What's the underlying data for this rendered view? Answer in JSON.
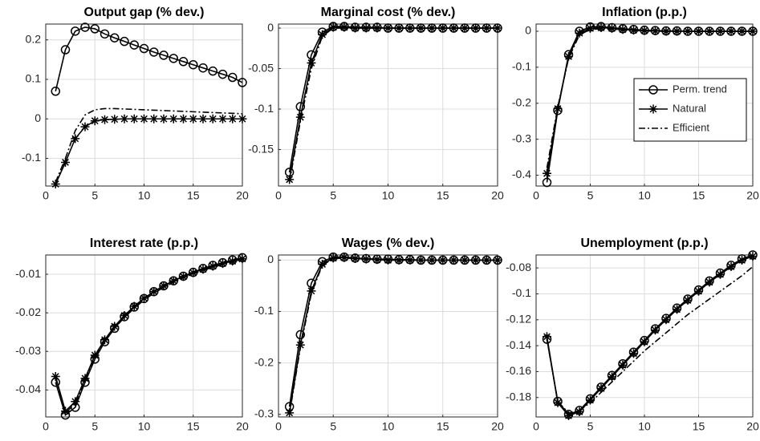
{
  "chart_data": [
    {
      "type": "line",
      "title": "Output gap (% dev.)",
      "x": [
        1,
        2,
        3,
        4,
        5,
        6,
        7,
        8,
        9,
        10,
        11,
        12,
        13,
        14,
        15,
        16,
        17,
        18,
        19,
        20
      ],
      "xlim": [
        0,
        20
      ],
      "xticks": [
        0,
        5,
        10,
        15,
        20
      ],
      "ylim": [
        -0.17,
        0.24
      ],
      "yticks": [
        -0.1,
        0,
        0.1,
        0.2
      ],
      "grid": true,
      "series": [
        {
          "color": "#000000",
          "marker": "circle",
          "dash": "solid",
          "values": [
            0.07,
            0.175,
            0.222,
            0.232,
            0.228,
            0.215,
            0.205,
            0.196,
            0.187,
            0.178,
            0.169,
            0.161,
            0.153,
            0.145,
            0.137,
            0.129,
            0.121,
            0.113,
            0.105,
            0.092
          ]
        },
        {
          "color": "#000000",
          "marker": "star",
          "dash": "solid",
          "values": [
            -0.165,
            -0.11,
            -0.05,
            -0.02,
            -0.005,
            -0.002,
            -0.001,
            0,
            0,
            0,
            0,
            0,
            0,
            0,
            0,
            0,
            0,
            0,
            0,
            0
          ]
        },
        {
          "color": "#000000",
          "marker": "none",
          "dash": "dashdot",
          "values": [
            -0.16,
            -0.1,
            -0.03,
            0.01,
            0.023,
            0.026,
            0.026,
            0.025,
            0.024,
            0.023,
            0.022,
            0.021,
            0.02,
            0.019,
            0.018,
            0.017,
            0.016,
            0.015,
            0.014,
            0.013
          ]
        }
      ]
    },
    {
      "type": "line",
      "title": "Marginal cost (% dev.)",
      "x": [
        1,
        2,
        3,
        4,
        5,
        6,
        7,
        8,
        9,
        10,
        11,
        12,
        13,
        14,
        15,
        16,
        17,
        18,
        19,
        20
      ],
      "xlim": [
        0,
        20
      ],
      "xticks": [
        0,
        5,
        10,
        15,
        20
      ],
      "ylim": [
        -0.195,
        0.005
      ],
      "yticks": [
        -0.15,
        -0.1,
        -0.05,
        0
      ],
      "grid": true,
      "series": [
        {
          "color": "#000000",
          "marker": "circle",
          "dash": "solid",
          "values": [
            -0.178,
            -0.097,
            -0.033,
            -0.005,
            0.002,
            0.002,
            0.001,
            0.001,
            0.001,
            0,
            0,
            0,
            0,
            0,
            0,
            0,
            0,
            0,
            0,
            0
          ]
        },
        {
          "color": "#000000",
          "marker": "star",
          "dash": "solid",
          "values": [
            -0.187,
            -0.11,
            -0.043,
            -0.008,
            0.001,
            0.001,
            0,
            0,
            0,
            0,
            0,
            0,
            0,
            0,
            0,
            0,
            0,
            0,
            0,
            0
          ]
        },
        {
          "color": "#000000",
          "marker": "none",
          "dash": "dashdot",
          "values": [
            -0.19,
            -0.115,
            -0.05,
            -0.01,
            0,
            0,
            0,
            0,
            0,
            0,
            0,
            0,
            0,
            0,
            0,
            0,
            0,
            0,
            0,
            0
          ]
        }
      ]
    },
    {
      "type": "line",
      "title": "Inflation (p.p.)",
      "x": [
        1,
        2,
        3,
        4,
        5,
        6,
        7,
        8,
        9,
        10,
        11,
        12,
        13,
        14,
        15,
        16,
        17,
        18,
        19,
        20
      ],
      "xlim": [
        0,
        20
      ],
      "xticks": [
        0,
        5,
        10,
        15,
        20
      ],
      "ylim": [
        -0.43,
        0.02
      ],
      "yticks": [
        -0.4,
        -0.3,
        -0.2,
        -0.1,
        0
      ],
      "grid": true,
      "legend": "east",
      "series": [
        {
          "name": "Perm. trend",
          "color": "#000000",
          "marker": "circle",
          "dash": "solid",
          "values": [
            -0.42,
            -0.22,
            -0.065,
            0,
            0.012,
            0.013,
            0.01,
            0.007,
            0.005,
            0.003,
            0.002,
            0.001,
            0.001,
            0,
            0,
            0,
            0,
            0,
            0,
            0
          ]
        },
        {
          "name": "Natural",
          "color": "#000000",
          "marker": "star",
          "dash": "solid",
          "values": [
            -0.395,
            -0.215,
            -0.07,
            -0.005,
            0.008,
            0.01,
            0.008,
            0.005,
            0.003,
            0.002,
            0.001,
            0,
            0,
            0,
            0,
            0,
            0,
            0,
            0,
            0
          ]
        },
        {
          "name": "Efficient",
          "color": "#000000",
          "marker": "none",
          "dash": "dashdot",
          "values": [
            -0.38,
            -0.21,
            -0.075,
            -0.01,
            0.005,
            0.007,
            0.006,
            0.004,
            0.002,
            0.001,
            0,
            0,
            0,
            0,
            0,
            0,
            0,
            0,
            0,
            0
          ]
        }
      ]
    },
    {
      "type": "line",
      "title": "Interest rate (p.p.)",
      "x": [
        1,
        2,
        3,
        4,
        5,
        6,
        7,
        8,
        9,
        10,
        11,
        12,
        13,
        14,
        15,
        16,
        17,
        18,
        19,
        20
      ],
      "xlim": [
        0,
        20
      ],
      "xticks": [
        0,
        5,
        10,
        15,
        20
      ],
      "ylim": [
        -0.047,
        -0.005
      ],
      "yticks": [
        -0.04,
        -0.03,
        -0.02,
        -0.01
      ],
      "grid": true,
      "series": [
        {
          "color": "#000000",
          "marker": "circle",
          "dash": "solid",
          "values": [
            -0.038,
            -0.0465,
            -0.0445,
            -0.038,
            -0.032,
            -0.0275,
            -0.024,
            -0.021,
            -0.0185,
            -0.0163,
            -0.0145,
            -0.013,
            -0.0117,
            -0.0105,
            -0.0095,
            -0.0085,
            -0.0077,
            -0.007,
            -0.0063,
            -0.0057
          ]
        },
        {
          "color": "#000000",
          "marker": "star",
          "dash": "solid",
          "values": [
            -0.0365,
            -0.0455,
            -0.043,
            -0.037,
            -0.031,
            -0.027,
            -0.0235,
            -0.0207,
            -0.0183,
            -0.0162,
            -0.0145,
            -0.013,
            -0.0117,
            -0.0106,
            -0.0096,
            -0.0087,
            -0.0079,
            -0.0072,
            -0.0066,
            -0.006
          ]
        },
        {
          "color": "#000000",
          "marker": "none",
          "dash": "dashdot",
          "values": [
            -0.037,
            -0.046,
            -0.0435,
            -0.0375,
            -0.0315,
            -0.0275,
            -0.024,
            -0.0212,
            -0.0188,
            -0.0167,
            -0.0149,
            -0.0134,
            -0.0121,
            -0.0109,
            -0.0099,
            -0.009,
            -0.0082,
            -0.0075,
            -0.0068,
            -0.0062
          ]
        }
      ]
    },
    {
      "type": "line",
      "title": "Wages (% dev.)",
      "x": [
        1,
        2,
        3,
        4,
        5,
        6,
        7,
        8,
        9,
        10,
        11,
        12,
        13,
        14,
        15,
        16,
        17,
        18,
        19,
        20
      ],
      "xlim": [
        0,
        20
      ],
      "xticks": [
        0,
        5,
        10,
        15,
        20
      ],
      "ylim": [
        -0.305,
        0.01
      ],
      "yticks": [
        -0.3,
        -0.2,
        -0.1,
        0
      ],
      "grid": true,
      "series": [
        {
          "color": "#000000",
          "marker": "circle",
          "dash": "solid",
          "values": [
            -0.285,
            -0.145,
            -0.045,
            -0.003,
            0.006,
            0.006,
            0.004,
            0.003,
            0.002,
            0.002,
            0.001,
            0.001,
            0,
            0,
            0,
            0,
            0,
            0,
            0,
            0
          ]
        },
        {
          "color": "#000000",
          "marker": "star",
          "dash": "solid",
          "values": [
            -0.297,
            -0.165,
            -0.06,
            -0.008,
            0.004,
            0.005,
            0.003,
            0.002,
            0.001,
            0,
            0,
            0,
            0,
            0,
            0,
            0,
            0,
            0,
            0,
            0
          ]
        },
        {
          "color": "#000000",
          "marker": "none",
          "dash": "dashdot",
          "values": [
            -0.3,
            -0.17,
            -0.065,
            -0.01,
            0.003,
            0.004,
            0.003,
            0.002,
            0.001,
            0,
            0,
            0,
            0,
            0,
            0,
            0,
            0,
            0,
            0,
            0
          ]
        }
      ]
    },
    {
      "type": "line",
      "title": "Unemployment (p.p.)",
      "x": [
        1,
        2,
        3,
        4,
        5,
        6,
        7,
        8,
        9,
        10,
        11,
        12,
        13,
        14,
        15,
        16,
        17,
        18,
        19,
        20
      ],
      "xlim": [
        0,
        20
      ],
      "xticks": [
        0,
        5,
        10,
        15,
        20
      ],
      "ylim": [
        -0.195,
        -0.07
      ],
      "yticks": [
        -0.18,
        -0.16,
        -0.14,
        -0.12,
        -0.1,
        -0.08
      ],
      "grid": true,
      "series": [
        {
          "color": "#000000",
          "marker": "circle",
          "dash": "solid",
          "values": [
            -0.135,
            -0.183,
            -0.193,
            -0.19,
            -0.181,
            -0.172,
            -0.163,
            -0.154,
            -0.145,
            -0.136,
            -0.127,
            -0.119,
            -0.111,
            -0.104,
            -0.097,
            -0.09,
            -0.084,
            -0.078,
            -0.073,
            -0.07
          ]
        },
        {
          "color": "#000000",
          "marker": "star",
          "dash": "solid",
          "values": [
            -0.133,
            -0.184,
            -0.194,
            -0.191,
            -0.182,
            -0.173,
            -0.164,
            -0.155,
            -0.146,
            -0.137,
            -0.128,
            -0.12,
            -0.112,
            -0.105,
            -0.098,
            -0.091,
            -0.085,
            -0.079,
            -0.074,
            -0.071
          ]
        },
        {
          "color": "#000000",
          "marker": "none",
          "dash": "dashdot",
          "values": [
            -0.135,
            -0.183,
            -0.192,
            -0.19,
            -0.184,
            -0.176,
            -0.168,
            -0.16,
            -0.152,
            -0.144,
            -0.137,
            -0.13,
            -0.123,
            -0.116,
            -0.11,
            -0.104,
            -0.098,
            -0.092,
            -0.086,
            -0.079
          ]
        }
      ]
    }
  ]
}
